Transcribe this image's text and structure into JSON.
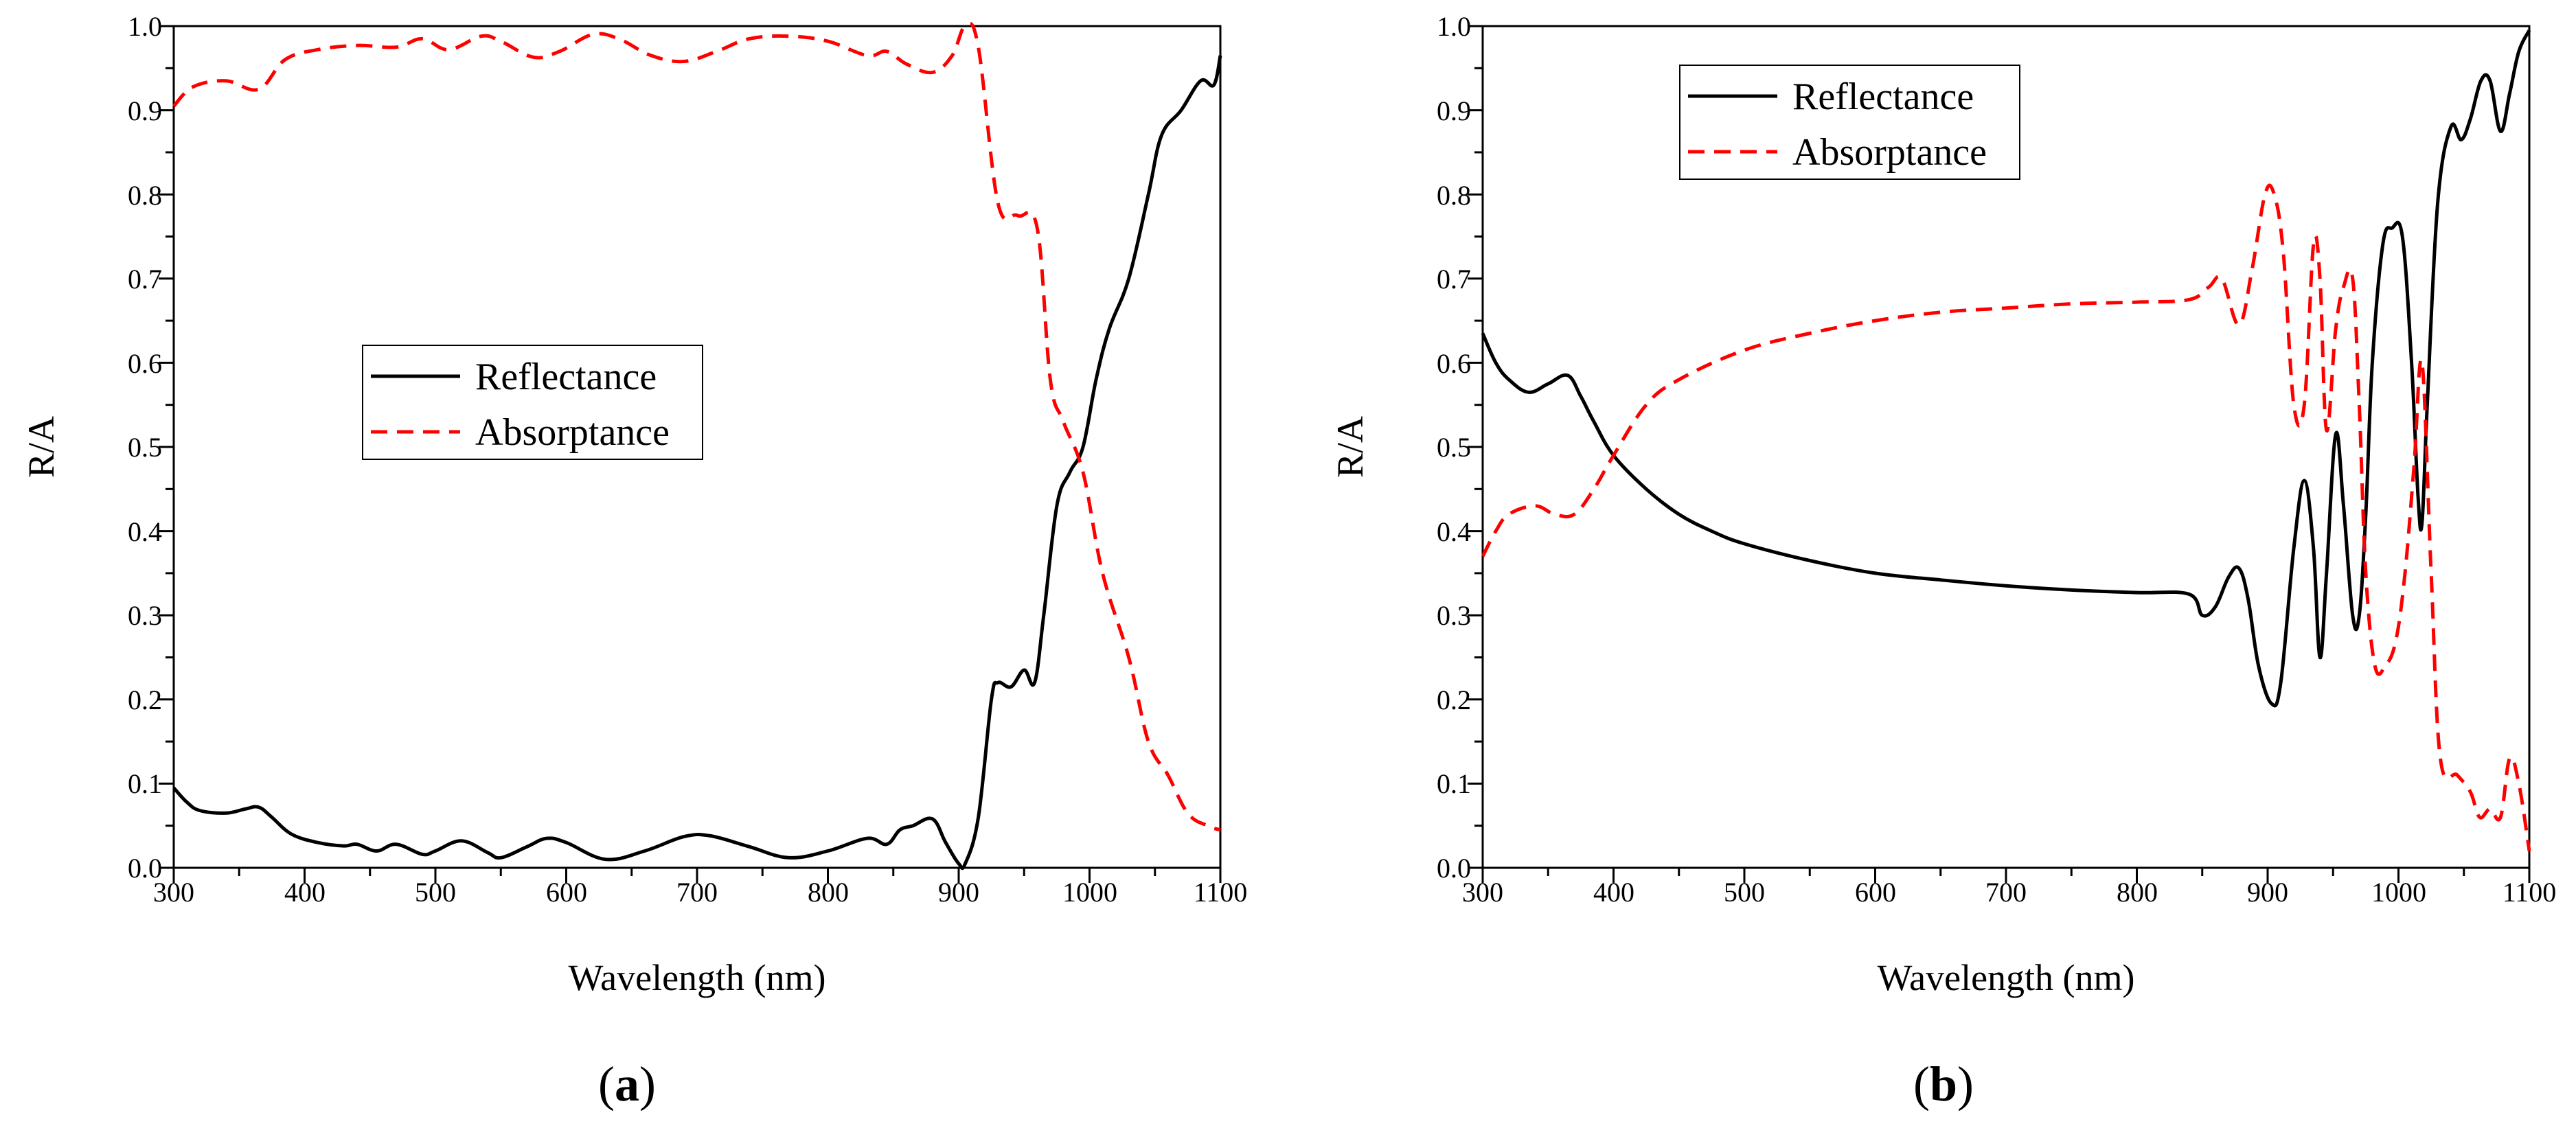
{
  "figure": {
    "panels": [
      {
        "panel_label": "(a)",
        "letter": "a"
      },
      {
        "panel_label": "(b)",
        "letter": "b"
      }
    ]
  },
  "chart_data": [
    {
      "type": "line",
      "title": "",
      "panel_label": "(a)",
      "xlabel": "Wavelength (nm)",
      "ylabel": "R/A",
      "xlim": [
        300,
        1100
      ],
      "ylim": [
        0,
        1
      ],
      "xticks": [
        300,
        400,
        500,
        600,
        700,
        800,
        900,
        1000,
        1100
      ],
      "xtick_labels": [
        "300",
        "400",
        "500",
        "600",
        "700",
        "800",
        "900",
        "1000",
        "1100"
      ],
      "yticks": [
        0,
        0.1,
        0.2,
        0.3,
        0.4,
        0.5,
        0.6,
        0.7,
        0.8,
        0.9,
        1.0
      ],
      "ytick_labels": [
        "0.0",
        "0.1",
        "0.2",
        "0.3",
        "0.4",
        "0.5",
        "0.6",
        "0.7",
        "0.8",
        "0.9",
        "1.0"
      ],
      "legend_position": "center-left",
      "series": [
        {
          "name": "Reflectance",
          "color": "#000000",
          "dash": "solid",
          "x": [
            300,
            310,
            320,
            340,
            355,
            365,
            375,
            390,
            410,
            430,
            440,
            455,
            470,
            490,
            500,
            520,
            540,
            550,
            570,
            585,
            600,
            630,
            660,
            690,
            710,
            740,
            770,
            800,
            830,
            845,
            855,
            865,
            880,
            890,
            900,
            905,
            915,
            925,
            930,
            940,
            950,
            958,
            965,
            975,
            985,
            995,
            1005,
            1015,
            1030,
            1045,
            1055,
            1070,
            1085,
            1095,
            1100
          ],
          "y": [
            0.095,
            0.078,
            0.068,
            0.065,
            0.07,
            0.072,
            0.06,
            0.04,
            0.03,
            0.026,
            0.028,
            0.02,
            0.028,
            0.016,
            0.02,
            0.032,
            0.018,
            0.012,
            0.025,
            0.035,
            0.03,
            0.01,
            0.02,
            0.037,
            0.038,
            0.025,
            0.012,
            0.02,
            0.035,
            0.028,
            0.045,
            0.05,
            0.058,
            0.03,
            0.005,
            0.005,
            0.06,
            0.2,
            0.22,
            0.215,
            0.235,
            0.22,
            0.3,
            0.43,
            0.47,
            0.5,
            0.58,
            0.64,
            0.7,
            0.8,
            0.87,
            0.9,
            0.935,
            0.93,
            0.965
          ]
        },
        {
          "name": "Absorptance",
          "color": "#ff0000",
          "dash": "dashed",
          "x": [
            300,
            315,
            340,
            365,
            385,
            410,
            440,
            470,
            490,
            510,
            535,
            550,
            575,
            595,
            620,
            640,
            665,
            690,
            715,
            740,
            770,
            800,
            830,
            845,
            860,
            880,
            895,
            905,
            915,
            930,
            945,
            960,
            970,
            980,
            995,
            1010,
            1030,
            1045,
            1060,
            1075,
            1090,
            1100
          ],
          "y": [
            0.905,
            0.928,
            0.935,
            0.925,
            0.96,
            0.972,
            0.977,
            0.975,
            0.985,
            0.972,
            0.988,
            0.982,
            0.963,
            0.97,
            0.99,
            0.985,
            0.965,
            0.958,
            0.97,
            0.985,
            0.988,
            0.982,
            0.965,
            0.97,
            0.955,
            0.945,
            0.965,
            1.0,
            0.975,
            0.79,
            0.775,
            0.76,
            0.58,
            0.53,
            0.47,
            0.35,
            0.25,
            0.15,
            0.11,
            0.065,
            0.05,
            0.045
          ]
        }
      ]
    },
    {
      "type": "line",
      "title": "",
      "panel_label": "(b)",
      "xlabel": "Wavelength (nm)",
      "ylabel": "R/A",
      "xlim": [
        300,
        1100
      ],
      "ylim": [
        0,
        1
      ],
      "xticks": [
        300,
        400,
        500,
        600,
        700,
        800,
        900,
        1000,
        1100
      ],
      "xtick_labels": [
        "300",
        "400",
        "500",
        "600",
        "700",
        "800",
        "900",
        "1000",
        "1100"
      ],
      "yticks": [
        0,
        0.1,
        0.2,
        0.3,
        0.4,
        0.5,
        0.6,
        0.7,
        0.8,
        0.9,
        1.0
      ],
      "ytick_labels": [
        "0.0",
        "0.1",
        "0.2",
        "0.3",
        "0.4",
        "0.5",
        "0.6",
        "0.7",
        "0.8",
        "0.9",
        "1.0"
      ],
      "legend_position": "top-left",
      "series": [
        {
          "name": "Reflectance",
          "color": "#000000",
          "dash": "solid",
          "x": [
            300,
            310,
            320,
            335,
            350,
            365,
            375,
            385,
            400,
            425,
            450,
            475,
            500,
            550,
            600,
            650,
            700,
            750,
            800,
            840,
            850,
            860,
            870,
            878,
            885,
            893,
            903,
            910,
            920,
            928,
            935,
            940,
            945,
            952,
            958,
            965,
            970,
            975,
            980,
            988,
            995,
            1003,
            1010,
            1015,
            1018,
            1022,
            1030,
            1040,
            1048,
            1055,
            1063,
            1070,
            1078,
            1085,
            1092,
            1100
          ],
          "y": [
            0.635,
            0.6,
            0.58,
            0.565,
            0.575,
            0.585,
            0.56,
            0.53,
            0.49,
            0.45,
            0.42,
            0.4,
            0.385,
            0.365,
            0.35,
            0.342,
            0.335,
            0.33,
            0.327,
            0.325,
            0.3,
            0.31,
            0.345,
            0.356,
            0.32,
            0.24,
            0.195,
            0.22,
            0.38,
            0.46,
            0.38,
            0.25,
            0.35,
            0.515,
            0.43,
            0.3,
            0.3,
            0.42,
            0.6,
            0.74,
            0.76,
            0.75,
            0.6,
            0.44,
            0.41,
            0.55,
            0.79,
            0.88,
            0.865,
            0.89,
            0.935,
            0.935,
            0.875,
            0.92,
            0.97,
            0.995
          ]
        },
        {
          "name": "Absorptance",
          "color": "#ff0000",
          "dash": "dashed",
          "x": [
            300,
            310,
            320,
            340,
            355,
            370,
            385,
            400,
            425,
            450,
            500,
            550,
            600,
            650,
            700,
            750,
            800,
            840,
            855,
            865,
            878,
            888,
            898,
            905,
            912,
            920,
            928,
            935,
            940,
            945,
            952,
            958,
            965,
            970,
            975,
            982,
            990,
            998,
            1005,
            1012,
            1018,
            1025,
            1032,
            1045,
            1055,
            1062,
            1070,
            1078,
            1085,
            1092,
            1100
          ],
          "y": [
            0.37,
            0.4,
            0.42,
            0.43,
            0.42,
            0.42,
            0.45,
            0.49,
            0.55,
            0.58,
            0.615,
            0.635,
            0.65,
            0.66,
            0.665,
            0.67,
            0.672,
            0.675,
            0.69,
            0.7,
            0.645,
            0.71,
            0.8,
            0.8,
            0.73,
            0.55,
            0.55,
            0.74,
            0.7,
            0.52,
            0.64,
            0.69,
            0.7,
            0.55,
            0.35,
            0.24,
            0.24,
            0.27,
            0.35,
            0.48,
            0.6,
            0.35,
            0.13,
            0.11,
            0.09,
            0.06,
            0.07,
            0.06,
            0.13,
            0.1,
            0.02
          ]
        }
      ]
    }
  ]
}
